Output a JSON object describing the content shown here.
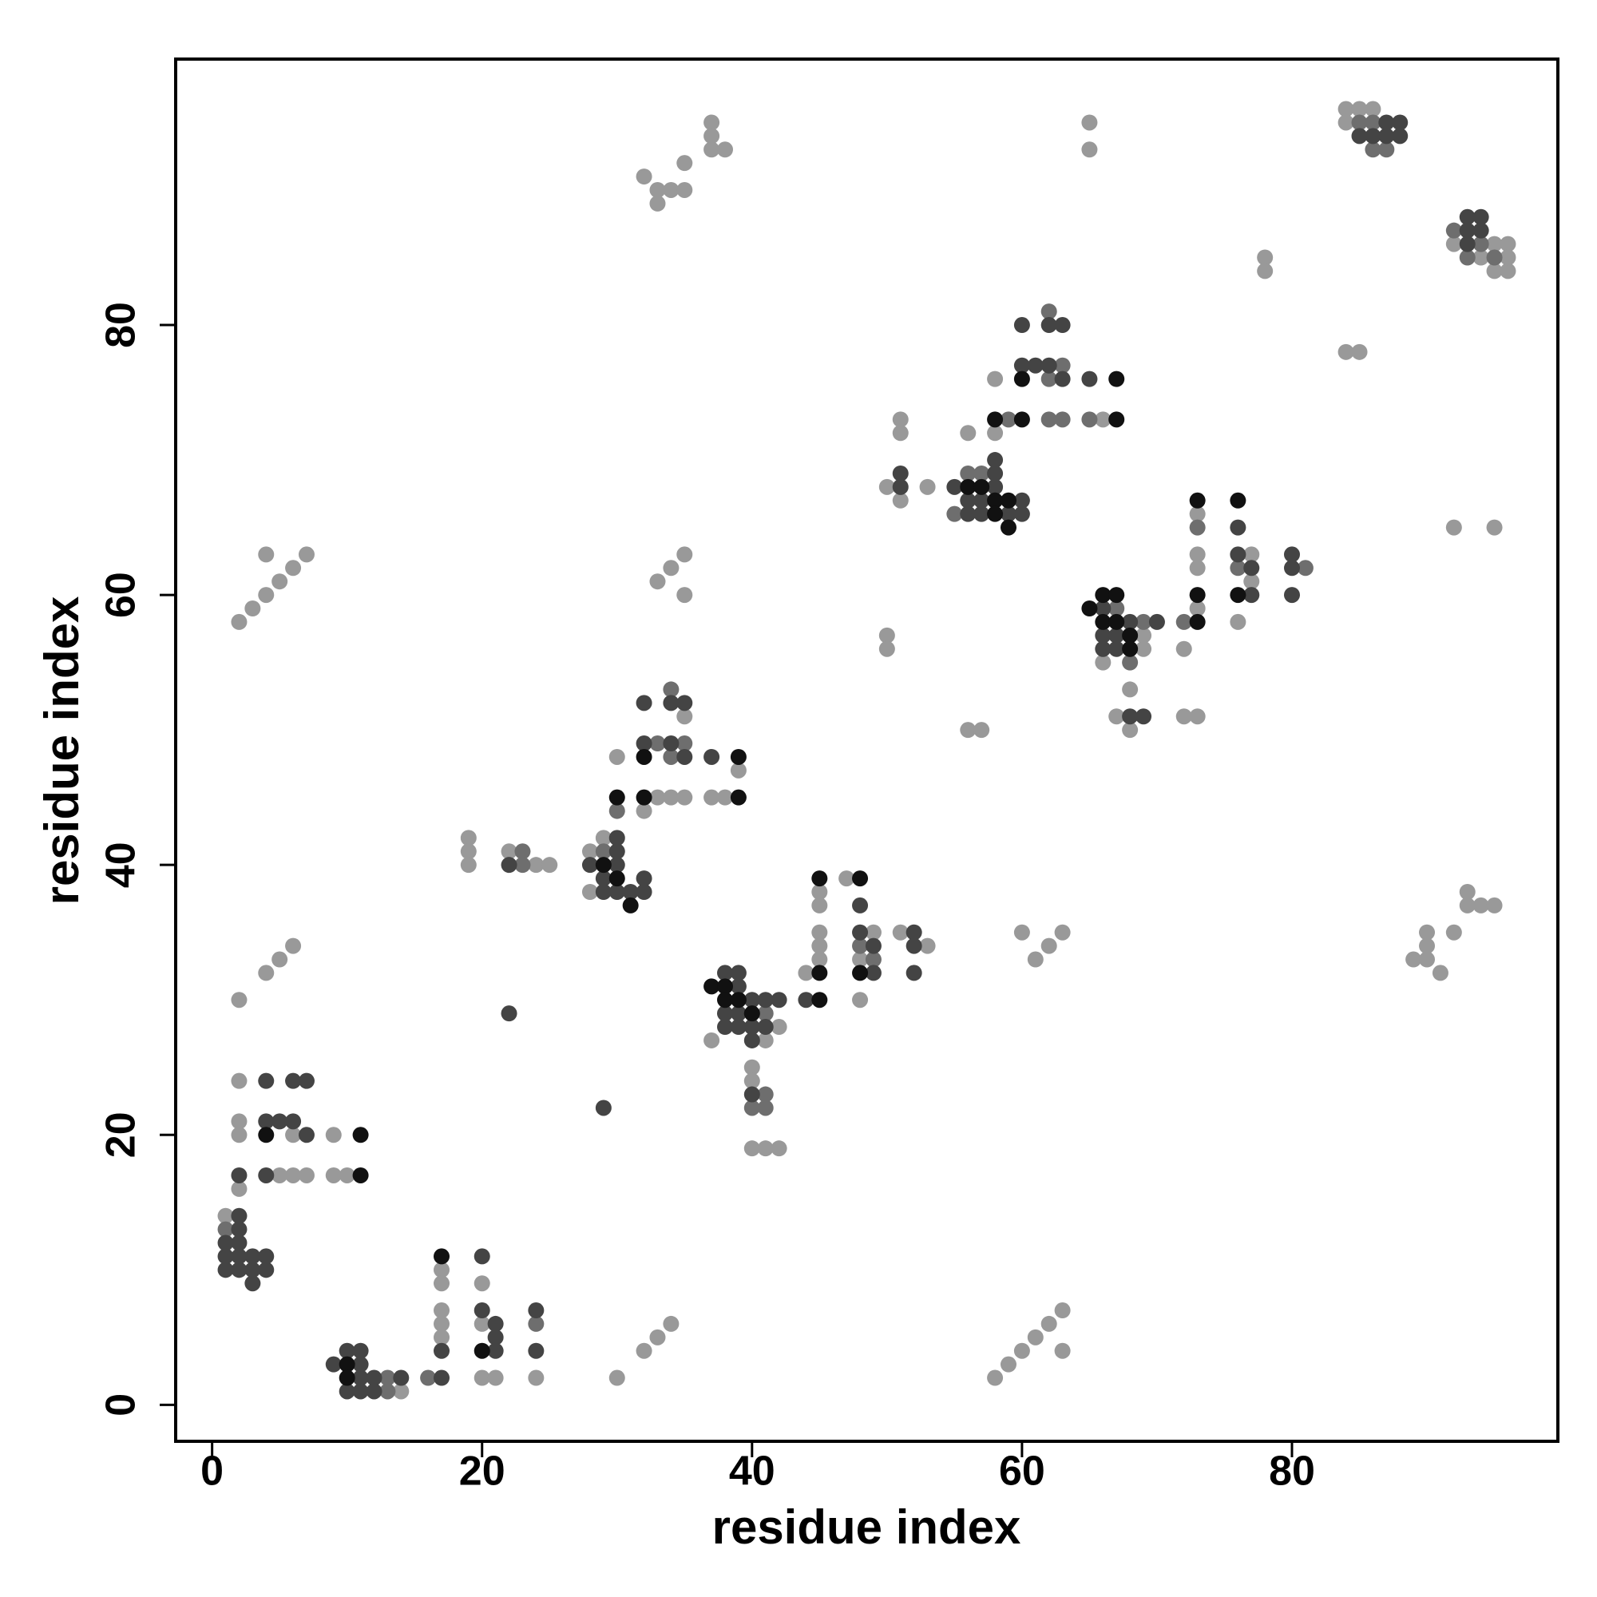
{
  "chart_data": {
    "type": "scatter",
    "xlabel": "residue index",
    "ylabel": "residue index",
    "xlim": [
      -2.7,
      99.7
    ],
    "ylim": [
      -2.7,
      99.7
    ],
    "xticks": [
      0,
      20,
      40,
      60,
      80
    ],
    "yticks": [
      0,
      20,
      40,
      60,
      80
    ],
    "grid": false,
    "series": [
      {
        "color": "#999999",
        "x": [
          14,
          17,
          17,
          17,
          17,
          17,
          20,
          20,
          20,
          21,
          24,
          30,
          32,
          33,
          34,
          1,
          2,
          2,
          2,
          6,
          9,
          5,
          6,
          7,
          9,
          10,
          2,
          2,
          4,
          5,
          6,
          2,
          3,
          4,
          5,
          6,
          7,
          4,
          19,
          19,
          19,
          22,
          24,
          25,
          29,
          28,
          28,
          30,
          32,
          33,
          34,
          35,
          35,
          37,
          38,
          39,
          33,
          34,
          35,
          35,
          32,
          33,
          33,
          34,
          35,
          35,
          37,
          37,
          37,
          38,
          42,
          37,
          41,
          40,
          40,
          40,
          41,
          42,
          44,
          45,
          45,
          45,
          45,
          45,
          47,
          49,
          48,
          48,
          51,
          53,
          50,
          50,
          56,
          57,
          50,
          51,
          51,
          51,
          53,
          60,
          61,
          62,
          63,
          58,
          59,
          60,
          61,
          62,
          63,
          63,
          56,
          58,
          58,
          66,
          65,
          65,
          69,
          69,
          66,
          68,
          67,
          68,
          73,
          73,
          73,
          73,
          72,
          72,
          73,
          77,
          77,
          76,
          78,
          78,
          84,
          85,
          84,
          85,
          86,
          84,
          92,
          95,
          94,
          95,
          96,
          96,
          96,
          92,
          95,
          93,
          93,
          94,
          95,
          90,
          92,
          89,
          90,
          90,
          91
        ],
        "y": [
          1,
          10,
          9,
          7,
          6,
          5,
          9,
          6,
          2,
          2,
          2,
          2,
          4,
          5,
          6,
          14,
          24,
          21,
          20,
          20,
          20,
          17,
          17,
          17,
          17,
          17,
          16,
          30,
          32,
          33,
          34,
          58,
          59,
          60,
          61,
          62,
          63,
          63,
          42,
          41,
          40,
          41,
          40,
          40,
          42,
          41,
          38,
          48,
          44,
          45,
          45,
          45,
          51,
          45,
          45,
          47,
          61,
          62,
          63,
          60,
          91,
          90,
          89,
          90,
          90,
          92,
          95,
          94,
          93,
          93,
          28,
          27,
          27,
          25,
          24,
          19,
          19,
          19,
          32,
          38,
          37,
          35,
          34,
          33,
          39,
          35,
          33,
          30,
          35,
          34,
          57,
          56,
          50,
          50,
          68,
          73,
          72,
          67,
          68,
          35,
          33,
          34,
          35,
          2,
          3,
          4,
          5,
          6,
          7,
          4,
          72,
          72,
          76,
          73,
          95,
          93,
          57,
          56,
          55,
          53,
          51,
          50,
          59,
          62,
          63,
          66,
          56,
          51,
          51,
          63,
          61,
          58,
          85,
          84,
          78,
          78,
          96,
          96,
          96,
          95,
          86,
          86,
          85,
          84,
          84,
          86,
          85,
          65,
          65,
          38,
          37,
          37,
          37,
          35,
          35,
          33,
          33,
          34,
          32
        ]
      },
      {
        "color": "#6e6e6e",
        "x": [
          13,
          13,
          16,
          24,
          1,
          23,
          23,
          29,
          30,
          33,
          35,
          34,
          34,
          41,
          41,
          40,
          41,
          48,
          49,
          56,
          57,
          55,
          59,
          63,
          62,
          62,
          62,
          63,
          65,
          67,
          69,
          68,
          72,
          73,
          76,
          81,
          85,
          86,
          86,
          87,
          92,
          94,
          93,
          95
        ],
        "y": [
          2,
          1,
          2,
          6,
          13,
          41,
          40,
          41,
          44,
          49,
          49,
          48,
          53,
          29,
          23,
          22,
          22,
          34,
          33,
          69,
          69,
          66,
          73,
          77,
          76,
          81,
          73,
          73,
          73,
          59,
          58,
          55,
          58,
          65,
          62,
          62,
          95,
          95,
          93,
          93,
          87,
          86,
          85,
          85
        ]
      },
      {
        "color": "#444444",
        "x": [
          9,
          10,
          11,
          11,
          11,
          12,
          14,
          10,
          11,
          12,
          17,
          17,
          20,
          20,
          21,
          21,
          21,
          24,
          24,
          2,
          2,
          1,
          2,
          1,
          2,
          3,
          4,
          1,
          2,
          3,
          4,
          3,
          4,
          6,
          7,
          4,
          5,
          6,
          7,
          2,
          4,
          22,
          29,
          22,
          30,
          30,
          28,
          30,
          29,
          29,
          30,
          31,
          32,
          32,
          32,
          34,
          35,
          32,
          34,
          35,
          37,
          38,
          39,
          39,
          40,
          41,
          42,
          38,
          39,
          38,
          39,
          40,
          41,
          40,
          40,
          44,
          48,
          48,
          49,
          49,
          52,
          52,
          52,
          51,
          51,
          58,
          58,
          55,
          58,
          56,
          57,
          60,
          56,
          57,
          59,
          60,
          60,
          61,
          62,
          63,
          60,
          62,
          63,
          65,
          66,
          68,
          70,
          66,
          67,
          66,
          67,
          68,
          69,
          76,
          76,
          77,
          77,
          80,
          80,
          80,
          87,
          88,
          85,
          86,
          87,
          88,
          93,
          94,
          93,
          94,
          93
        ],
        "y": [
          3,
          4,
          4,
          3,
          2,
          2,
          2,
          1,
          1,
          1,
          2,
          4,
          11,
          7,
          6,
          5,
          4,
          7,
          4,
          14,
          13,
          12,
          12,
          11,
          11,
          11,
          11,
          10,
          10,
          10,
          10,
          9,
          24,
          24,
          24,
          21,
          21,
          21,
          20,
          17,
          17,
          29,
          22,
          40,
          42,
          41,
          40,
          40,
          39,
          38,
          38,
          38,
          39,
          38,
          49,
          49,
          48,
          52,
          52,
          52,
          48,
          32,
          32,
          31,
          30,
          30,
          30,
          29,
          29,
          28,
          28,
          28,
          28,
          27,
          23,
          30,
          37,
          35,
          34,
          32,
          35,
          34,
          32,
          69,
          68,
          70,
          69,
          68,
          68,
          67,
          67,
          67,
          66,
          66,
          66,
          66,
          77,
          77,
          77,
          76,
          80,
          80,
          80,
          76,
          59,
          58,
          58,
          57,
          57,
          56,
          56,
          51,
          51,
          65,
          63,
          62,
          60,
          63,
          62,
          60,
          95,
          95,
          94,
          94,
          94,
          94,
          88,
          88,
          87,
          87,
          86
        ]
      },
      {
        "color": "#111111",
        "x": [
          10,
          10,
          17,
          20,
          4,
          11,
          11,
          29,
          30,
          31,
          30,
          32,
          32,
          39,
          39,
          37,
          38,
          38,
          39,
          40,
          45,
          45,
          45,
          48,
          48,
          58,
          60,
          56,
          57,
          58,
          59,
          58,
          59,
          60,
          67,
          67,
          65,
          66,
          67,
          66,
          67,
          68,
          68,
          73,
          73,
          73,
          76,
          76
        ],
        "y": [
          3,
          2,
          11,
          4,
          20,
          20,
          17,
          40,
          39,
          37,
          45,
          48,
          45,
          45,
          48,
          31,
          31,
          30,
          30,
          29,
          32,
          30,
          39,
          39,
          32,
          73,
          73,
          68,
          68,
          67,
          67,
          66,
          65,
          76,
          76,
          73,
          59,
          60,
          60,
          58,
          58,
          57,
          56,
          58,
          60,
          67,
          67,
          60
        ]
      }
    ]
  }
}
